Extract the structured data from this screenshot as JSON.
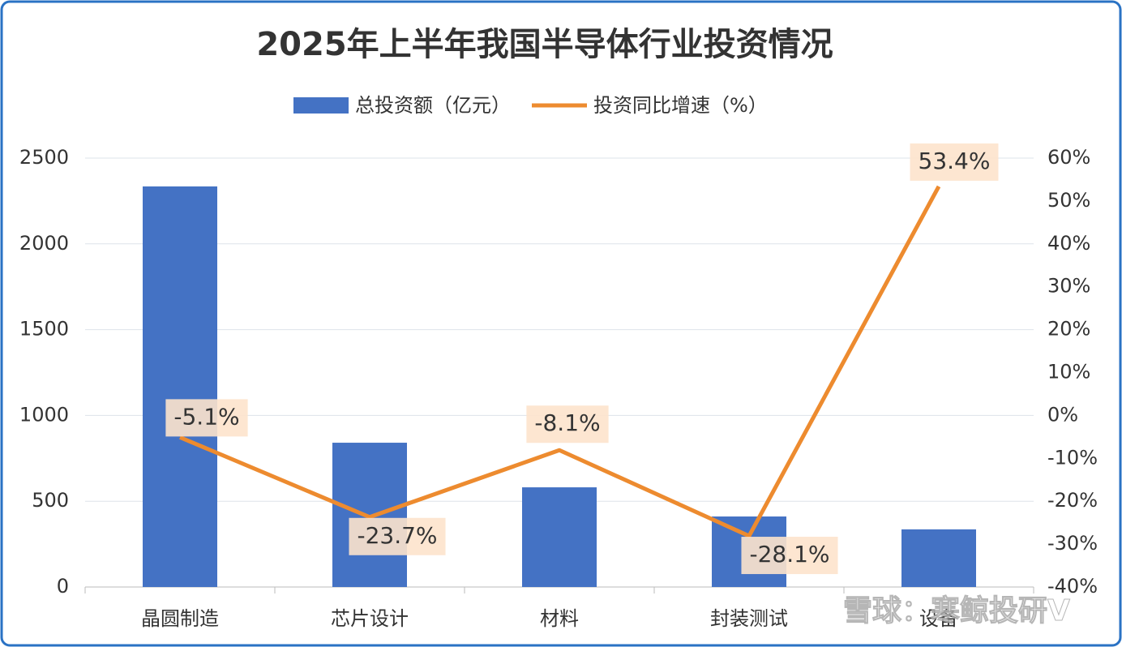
{
  "chart_data": {
    "type": "bar",
    "title": "2025年上半年我国半导体行业投资情况",
    "categories": [
      "晶圆制造",
      "芯片设计",
      "材料",
      "封装测试",
      "设备"
    ],
    "series": [
      {
        "name": "总投资额（亿元）",
        "type": "bar",
        "color": "#4472c4",
        "values": [
          2335,
          841,
          581,
          411,
          336
        ]
      },
      {
        "name": "投资同比增速（%）",
        "type": "line",
        "axis": "y2",
        "color": "#ed8b2f",
        "values": [
          -5.1,
          -23.7,
          -8.1,
          -28.1,
          53.4
        ],
        "value_labels": [
          "-5.1%",
          "-23.7%",
          "-8.1%",
          "-28.1%",
          "53.4%"
        ]
      }
    ],
    "ylim": [
      0,
      2500
    ],
    "yticks": [
      0,
      500,
      1000,
      1500,
      2000,
      2500
    ],
    "y2lim": [
      -40,
      60
    ],
    "y2ticks": [
      {
        "value": -40,
        "label": "-40%"
      },
      {
        "value": -30,
        "label": "-30%"
      },
      {
        "value": -20,
        "label": "-20%"
      },
      {
        "value": -10,
        "label": "-10%"
      },
      {
        "value": 0,
        "label": "0%"
      },
      {
        "value": 10,
        "label": "10%"
      },
      {
        "value": 20,
        "label": "20%"
      },
      {
        "value": 30,
        "label": "30%"
      },
      {
        "value": 40,
        "label": "40%"
      },
      {
        "value": 50,
        "label": "50%"
      },
      {
        "value": 60,
        "label": "60%"
      }
    ],
    "grid": true,
    "legend": "top",
    "watermark": "雪球：寒鲸投研V"
  }
}
